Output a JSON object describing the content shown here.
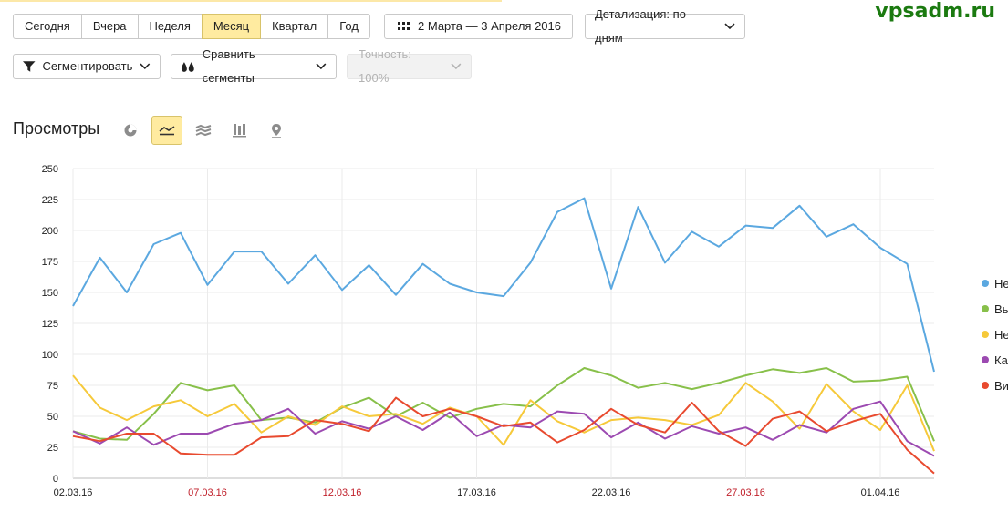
{
  "watermark": "vpsadm.ru",
  "periods": [
    "Сегодня",
    "Вчера",
    "Неделя",
    "Месяц",
    "Квартал",
    "Год"
  ],
  "active_period": "Месяц",
  "date_range": "2 Марта — 3 Апреля 2016",
  "detail": "Детализация: по дням",
  "segment_btn": "Сегментировать",
  "compare_btn": "Сравнить сегменты",
  "accuracy": "Точность: 100%",
  "report_title": "Просмотры",
  "chart_tools": [
    "pie-chart-icon",
    "line-chart-icon",
    "area-chart-icon",
    "bar-chart-icon",
    "map-pin-icon"
  ],
  "active_tool": "line-chart-icon",
  "chart_data": {
    "type": "line",
    "ylim": [
      0,
      250
    ],
    "yticks": [
      0,
      25,
      50,
      75,
      100,
      125,
      150,
      175,
      200,
      225,
      250
    ],
    "x_labels": [
      {
        "i": 0,
        "text": "02.03.16",
        "weekend": false
      },
      {
        "i": 5,
        "text": "07.03.16",
        "weekend": true
      },
      {
        "i": 10,
        "text": "12.03.16",
        "weekend": true
      },
      {
        "i": 15,
        "text": "17.03.16",
        "weekend": false
      },
      {
        "i": 20,
        "text": "22.03.16",
        "weekend": false
      },
      {
        "i": 25,
        "text": "27.03.16",
        "weekend": true
      },
      {
        "i": 30,
        "text": "01.04.16",
        "weekend": false
      }
    ],
    "series": [
      {
        "name": "Не",
        "color": "#5ba8e0",
        "values": [
          139,
          178,
          150,
          189,
          198,
          156,
          183,
          183,
          157,
          180,
          152,
          172,
          148,
          173,
          157,
          150,
          147,
          174,
          215,
          226,
          153,
          219,
          174,
          199,
          187,
          204,
          202,
          220,
          195,
          205,
          186,
          173,
          86
        ]
      },
      {
        "name": "Вь",
        "color": "#88c04a",
        "values": [
          38,
          32,
          31,
          52,
          77,
          71,
          75,
          47,
          49,
          45,
          57,
          65,
          50,
          61,
          49,
          56,
          60,
          58,
          75,
          89,
          83,
          73,
          77,
          72,
          77,
          83,
          88,
          85,
          89,
          78,
          79,
          82,
          30
        ]
      },
      {
        "name": "Не",
        "color": "#f6c93a",
        "values": [
          83,
          57,
          47,
          58,
          63,
          50,
          60,
          37,
          50,
          43,
          58,
          50,
          52,
          44,
          57,
          50,
          27,
          63,
          46,
          37,
          47,
          49,
          47,
          43,
          51,
          77,
          62,
          40,
          76,
          54,
          39,
          75,
          22
        ]
      },
      {
        "name": "Ка",
        "color": "#9c4ab1",
        "values": [
          38,
          28,
          41,
          27,
          36,
          36,
          44,
          47,
          56,
          36,
          46,
          40,
          50,
          39,
          53,
          34,
          43,
          41,
          54,
          52,
          33,
          45,
          32,
          42,
          36,
          41,
          31,
          43,
          37,
          56,
          62,
          30,
          18
        ]
      },
      {
        "name": "Ви",
        "color": "#e84a2f",
        "values": [
          34,
          30,
          36,
          36,
          20,
          19,
          19,
          33,
          34,
          47,
          44,
          38,
          65,
          50,
          56,
          50,
          42,
          45,
          29,
          39,
          56,
          43,
          37,
          61,
          38,
          26,
          48,
          54,
          38,
          46,
          52,
          23,
          4
        ]
      }
    ]
  }
}
